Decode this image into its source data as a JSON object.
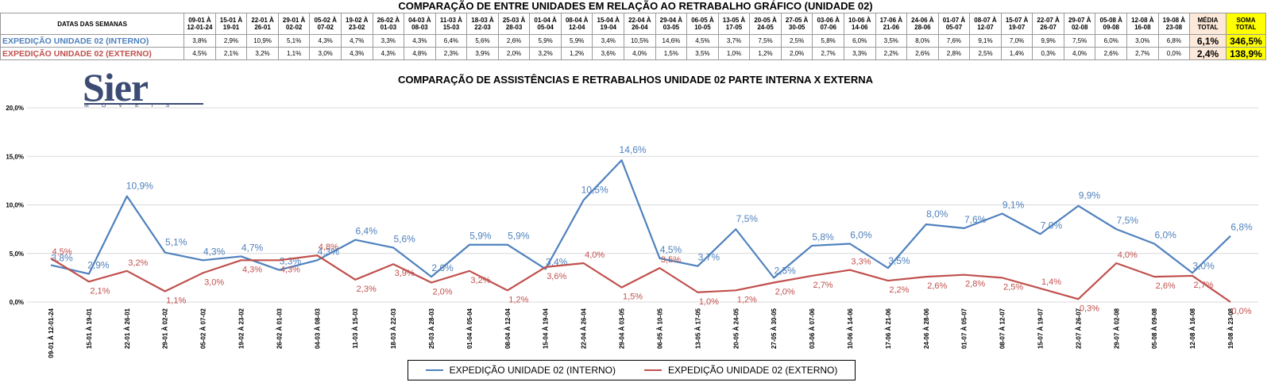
{
  "page_title": "COMPARAÇÃO DE ENTRE UNIDADES EM RELAÇÃO AO RETRABALHO GRÁFICO (UNIDADE 02)",
  "table": {
    "corner": "DATAS DAS SEMANAS",
    "headers": [
      "09-01 À 12-01-24",
      "15-01 À 19-01",
      "22-01 À 26-01",
      "29-01 À 02-02",
      "05-02 À 07-02",
      "19-02 À 23-02",
      "26-02 À 01-03",
      "04-03 À 08-03",
      "11-03 À 15-03",
      "18-03 À 22-03",
      "25-03 À 28-03",
      "01-04 À 05-04",
      "08-04 À 12-04",
      "15-04 À 19-04",
      "22-04 À 26-04",
      "29-04 À 03-05",
      "06-05 À 10-05",
      "13-05 À 17-05",
      "20-05 À 24-05",
      "27-05 À 30-05",
      "03-06 À 07-06",
      "10-06 À 14-06",
      "17-06 À 21-06",
      "24-06 À 28-06",
      "01-07 À 05-07",
      "08-07 À 12-07",
      "15-07 À 19-07",
      "22-07 À 26-07",
      "29-07 À 02-08",
      "05-08 À 09-08",
      "12-08 À 16-08",
      "19-08 À 23-08"
    ],
    "media_header": "MÉDIA TOTAL",
    "soma_header": "SOMA TOTAL",
    "rows": [
      {
        "label": "EXPEDIÇÃO UNIDADE 02 (INTERNO)",
        "values": [
          "3,8%",
          "2,9%",
          "10,9%",
          "5,1%",
          "4,3%",
          "4,7%",
          "3,3%",
          "4,3%",
          "6,4%",
          "5,6%",
          "2,6%",
          "5,9%",
          "5,9%",
          "3,4%",
          "10,5%",
          "14,6%",
          "4,5%",
          "3,7%",
          "7,5%",
          "2,5%",
          "5,8%",
          "6,0%",
          "3,5%",
          "8,0%",
          "7,6%",
          "9,1%",
          "7,0%",
          "9,9%",
          "7,5%",
          "6,0%",
          "3,0%",
          "6,8%"
        ],
        "media": "6,1%",
        "soma": "346,5%"
      },
      {
        "label": "EXPEDIÇÃO UNIDADE 02 (EXTERNO)",
        "values": [
          "4,5%",
          "2,1%",
          "3,2%",
          "1,1%",
          "3,0%",
          "4,3%",
          "4,3%",
          "4,8%",
          "2,3%",
          "3,9%",
          "2,0%",
          "3,2%",
          "1,2%",
          "3,6%",
          "4,0%",
          "1,5%",
          "3,5%",
          "1,0%",
          "1,2%",
          "2,0%",
          "2,7%",
          "3,3%",
          "2,2%",
          "2,6%",
          "2,8%",
          "2,5%",
          "1,4%",
          "0,3%",
          "4,0%",
          "2,6%",
          "2,7%",
          "0,0%"
        ],
        "media": "2,4%",
        "soma": "138,9%"
      }
    ]
  },
  "logo": {
    "word": "Sier",
    "sub": "MÓVEIS"
  },
  "chart_data": {
    "type": "line",
    "title": "COMPARAÇÃO DE ASSISTÊNCIAS E RETRABALHOS UNIDADE 02 PARTE INTERNA X EXTERNA",
    "categories": [
      "09-01 À 12-01-24",
      "15-01 À 19-01",
      "22-01 À 26-01",
      "29-01 À 02-02",
      "05-02 À 07-02",
      "19-02 À 23-02",
      "26-02 À 01-03",
      "04-03 À 08-03",
      "11-03 À 15-03",
      "18-03 À 22-03",
      "25-03 À 28-03",
      "01-04 À 05-04",
      "08-04 À 12-04",
      "15-04 À 19-04",
      "22-04 À 26-04",
      "29-04 À 03-05",
      "06-05 À 10-05",
      "13-05 À 17-05",
      "20-05 À 24-05",
      "27-05 À 30-05",
      "03-06 À 07-06",
      "10-06 À 14-06",
      "17-06 À 21-06",
      "24-06 À 28-06",
      "01-07 À 05-07",
      "08-07 À 12-07",
      "15-07 À 19-07",
      "22-07 À 26-07",
      "29-07 À 02-08",
      "05-08 À 09-08",
      "12-08 À 16-08",
      "19-08 À 23-08"
    ],
    "series": [
      {
        "name": "EXPEDIÇÃO UNIDADE 02 (INTERNO)",
        "color": "#4f81bd",
        "values": [
          3.8,
          2.9,
          10.9,
          5.1,
          4.3,
          4.7,
          3.3,
          4.3,
          6.4,
          5.6,
          2.6,
          5.9,
          5.9,
          3.4,
          10.5,
          14.6,
          4.5,
          3.7,
          7.5,
          2.5,
          5.8,
          6.0,
          3.5,
          8.0,
          7.6,
          9.1,
          7.0,
          9.9,
          7.5,
          6.0,
          3.0,
          6.8
        ]
      },
      {
        "name": "EXPEDIÇÃO UNIDADE 02 (EXTERNO)",
        "color": "#c0504d",
        "values": [
          4.5,
          2.1,
          3.2,
          1.1,
          3.0,
          4.3,
          4.3,
          4.8,
          2.3,
          3.9,
          2.0,
          3.2,
          1.2,
          3.6,
          4.0,
          1.5,
          3.5,
          1.0,
          1.2,
          2.0,
          2.7,
          3.3,
          2.2,
          2.6,
          2.8,
          2.5,
          1.4,
          0.3,
          4.0,
          2.6,
          2.7,
          0.0
        ]
      }
    ],
    "ylim": [
      0,
      20
    ],
    "yticks": [
      "0,0%",
      "5,0%",
      "10,0%",
      "15,0%",
      "20,0%"
    ],
    "grid": true,
    "legend": "bottom"
  }
}
